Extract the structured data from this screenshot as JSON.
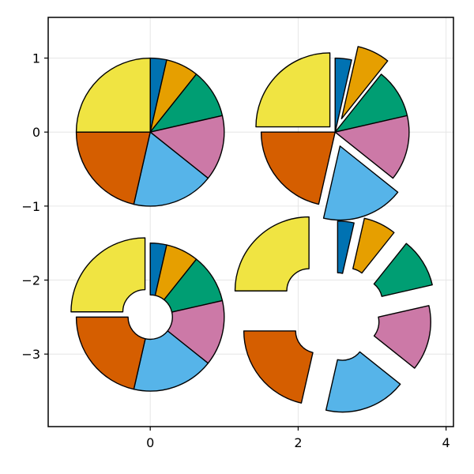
{
  "chart_data": {
    "type": "pie",
    "title": "",
    "xlabel": "",
    "ylabel": "",
    "xlim": [
      -1.38,
      4.1
    ],
    "ylim": [
      -3.98,
      1.55
    ],
    "grid": true,
    "x_ticks": [
      {
        "value": 0,
        "label": "0"
      },
      {
        "value": 2,
        "label": "2"
      },
      {
        "value": 4,
        "label": "4"
      }
    ],
    "y_ticks": [
      {
        "value": 1,
        "label": "1"
      },
      {
        "value": 0,
        "label": "0"
      },
      {
        "value": -1,
        "label": "−1"
      },
      {
        "value": -2,
        "label": "−2"
      },
      {
        "value": -3,
        "label": "−3"
      }
    ],
    "slice_values": [
      0.1,
      0.2,
      0.3,
      0.4,
      0.5,
      0.6,
      0.7
    ],
    "slice_colors": [
      "#0072b2",
      "#e69f00",
      "#009e73",
      "#cc79a7",
      "#56b4e9",
      "#d55e00",
      "#f0e442"
    ],
    "pies": [
      {
        "name": "top-left",
        "center": [
          0,
          0
        ],
        "radius": 1.0,
        "inner_radius": 0.0,
        "offsets": [
          0,
          0,
          0,
          0,
          0,
          0,
          0
        ]
      },
      {
        "name": "top-right",
        "center": [
          2.5,
          0
        ],
        "radius": 1.0,
        "inner_radius": 0.0,
        "offsets": [
          0,
          0.2,
          0,
          0,
          0.2,
          0,
          0.1
        ]
      },
      {
        "name": "bottom-left",
        "center": [
          0,
          -2.5
        ],
        "radius": 1.0,
        "inner_radius": 0.3,
        "offsets": [
          0,
          0,
          0,
          0,
          0,
          0,
          0.1
        ]
      },
      {
        "name": "bottom-right",
        "center": [
          2.5,
          -2.5
        ],
        "radius": 1.0,
        "inner_radius": 0.3,
        "offsets": [
          0.3,
          0.4,
          0.4,
          0.3,
          0.3,
          0.3,
          0.5
        ]
      }
    ]
  }
}
